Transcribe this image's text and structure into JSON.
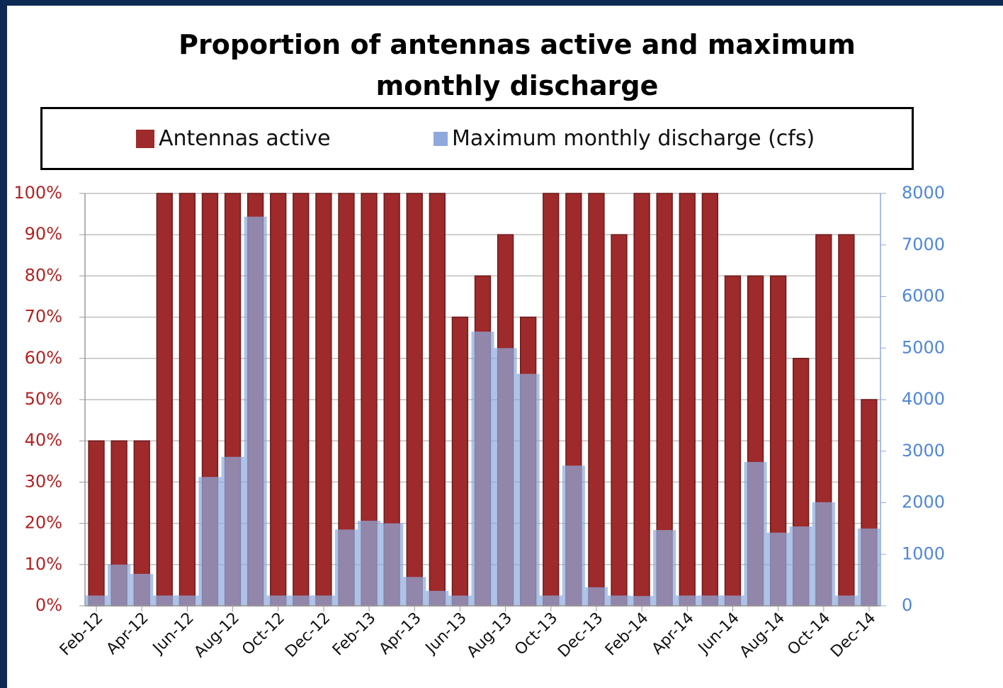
{
  "chart_data": {
    "type": "bar",
    "title": "Proportion of antennas active and maximum monthly discharge",
    "categories": [
      "Feb-12",
      null,
      "Apr-12",
      null,
      "Jun-12",
      null,
      "Aug-12",
      null,
      "Oct-12",
      null,
      "Dec-12",
      null,
      "Feb-13",
      null,
      "Apr-13",
      null,
      "Jun-13",
      null,
      "Aug-13",
      null,
      "Oct-13",
      null,
      "Dec-13",
      null,
      "Feb-14",
      null,
      "Apr-14",
      null,
      "Jun-14",
      null,
      "Aug-14",
      null,
      "Oct-14",
      null,
      "Dec-14"
    ],
    "series": [
      {
        "name": "Antennas active",
        "color": "#9e2a2b",
        "values": [
          40,
          40,
          40,
          100,
          100,
          100,
          100,
          100,
          100,
          100,
          100,
          100,
          100,
          100,
          100,
          100,
          70,
          80,
          90,
          70,
          100,
          100,
          100,
          90,
          100,
          100,
          100,
          100,
          80,
          80,
          80,
          60,
          90,
          90,
          50
        ]
      },
      {
        "name": "Maximum monthly discharge (cfs)",
        "color": "#8eaadc",
        "axis": "y2",
        "values": [
          200,
          800,
          620,
          200,
          200,
          2500,
          2890,
          7550,
          200,
          200,
          200,
          1480,
          1650,
          1600,
          560,
          290,
          200,
          5320,
          5000,
          4500,
          200,
          2720,
          360,
          200,
          190,
          1470,
          200,
          200,
          200,
          2790,
          1420,
          1540,
          2010,
          200,
          1500
        ]
      }
    ],
    "ylim": [
      0,
      100
    ],
    "yticks": [
      {
        "value": 0,
        "label": "0%"
      },
      {
        "value": 10,
        "label": "10%"
      },
      {
        "value": 20,
        "label": "20%"
      },
      {
        "value": 30,
        "label": "30%"
      },
      {
        "value": 40,
        "label": "40%"
      },
      {
        "value": 50,
        "label": "50%"
      },
      {
        "value": 60,
        "label": "60%"
      },
      {
        "value": 70,
        "label": "70%"
      },
      {
        "value": 80,
        "label": "80%"
      },
      {
        "value": 90,
        "label": "90%"
      },
      {
        "value": 100,
        "label": "100%"
      }
    ],
    "y2lim": [
      0,
      8000
    ],
    "y2ticks": [
      0,
      1000,
      2000,
      3000,
      4000,
      5000,
      6000,
      7000,
      8000
    ],
    "grid": true
  }
}
